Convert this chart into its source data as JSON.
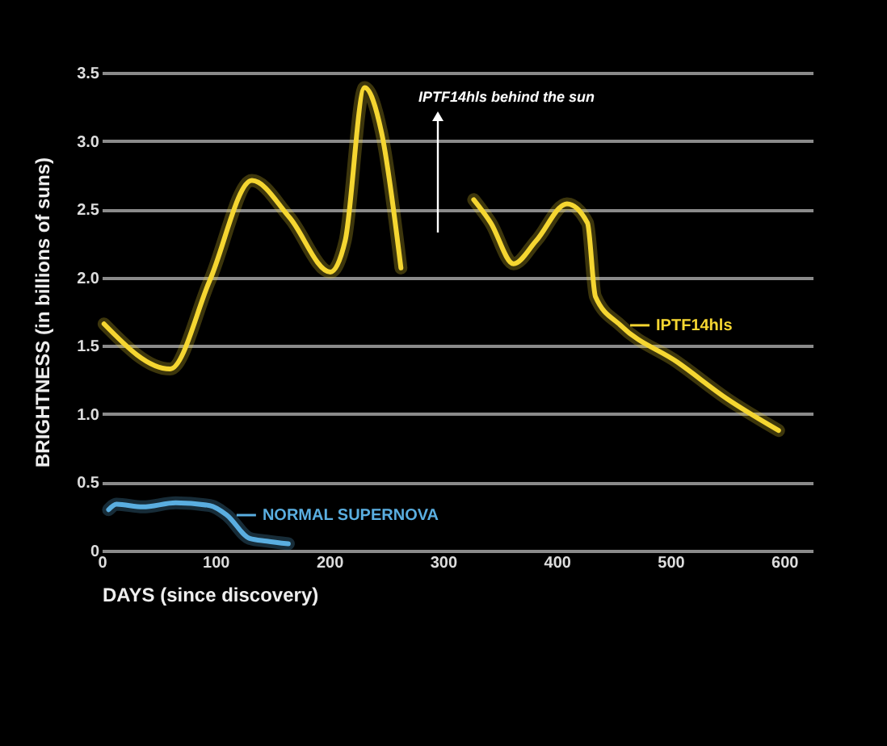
{
  "chart_data": {
    "type": "line",
    "xlabel": "DAYS (since discovery)",
    "ylabel": "BRIGHTNESS (in billions of suns)",
    "annotations": [
      "IPTF14hls behind the sun"
    ],
    "xlim": [
      0,
      625
    ],
    "xticks": [
      0,
      100,
      200,
      300,
      400,
      500,
      600
    ],
    "ylim": [
      0,
      3.5
    ],
    "yticks": [
      0,
      {
        "value": 0.5,
        "label": "0.5"
      },
      {
        "value": 1,
        "label": "1.0"
      },
      {
        "value": 1.5,
        "label": "1.5"
      },
      {
        "value": 2,
        "label": "2.0"
      },
      {
        "value": 2.5,
        "label": "2.5"
      },
      {
        "value": 3,
        "label": "3.0"
      },
      {
        "value": 3.5,
        "label": "3.5"
      }
    ],
    "grid": "y",
    "legend": "right",
    "series": [
      {
        "name": "IPTF14hls",
        "color": "#f5d631",
        "x": [
          2,
          60,
          95,
          132,
          165,
          201,
          214,
          231,
          246,
          263,
          295,
          327,
          342,
          362,
          382,
          409,
          427,
          434,
          456,
          506,
          550,
          595
        ],
        "values": [
          1.66,
          1.33,
          1.98,
          2.71,
          2.44,
          2.04,
          2.27,
          3.39,
          3.06,
          2.07,
          null,
          2.57,
          2.4,
          2.1,
          2.27,
          2.54,
          2.4,
          1.86,
          1.65,
          1.38,
          1.11,
          0.88
        ]
      },
      {
        "name": "NORMAL SUPERNOVA",
        "color": "#5aaee0",
        "x": [
          6,
          13,
          36,
          65,
          95,
          110,
          130,
          145,
          164
        ],
        "values": [
          0.3,
          0.34,
          0.32,
          0.35,
          0.33,
          0.26,
          0.09,
          0.07,
          0.05
        ]
      }
    ]
  }
}
